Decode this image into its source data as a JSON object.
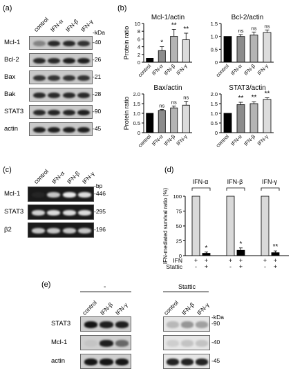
{
  "panel_labels": {
    "a": "(a)",
    "b": "(b)",
    "c": "(c)",
    "d": "(d)",
    "e": "(e)"
  },
  "panel_a": {
    "lanes": [
      "control",
      "IFN-α",
      "IFN-β",
      "IFN-γ"
    ],
    "kda_label": "-kDa",
    "rows": [
      {
        "name": "Mcl-1",
        "kda": "-40"
      },
      {
        "name": "Bcl-2",
        "kda": "-26"
      },
      {
        "name": "Bax",
        "kda": "-21"
      },
      {
        "name": "Bak",
        "kda": "-28"
      },
      {
        "name": "STAT3",
        "kda": "-90"
      },
      {
        "name": "actin",
        "kda": "-45"
      }
    ]
  },
  "panel_c": {
    "lanes": [
      "control",
      "IFN-α",
      "IFN-β",
      "IFN-γ"
    ],
    "bp_label": "-bp",
    "rows": [
      {
        "name": "Mcl-1",
        "bp": "-446"
      },
      {
        "name": "STAT3",
        "bp": "-295"
      },
      {
        "name": "β2",
        "bp": "-196"
      }
    ]
  },
  "panel_e": {
    "group_minus": "-",
    "group_stattic": "Stattic",
    "lanes": [
      "control",
      "IFN-β",
      "IFN-γ"
    ],
    "kda_label": "-kDa",
    "rows": [
      {
        "name": "STAT3",
        "kda": "-90"
      },
      {
        "name": "Mcl-1",
        "kda": "-40"
      },
      {
        "name": "actin",
        "kda": "-45"
      }
    ]
  },
  "chart_data": [
    {
      "type": "bar",
      "title": "Mcl-1/actin",
      "ylabel": "Protein ratio",
      "categories": [
        "control",
        "IFN-α",
        "IFN-β",
        "IFN-γ"
      ],
      "values": [
        1.0,
        3.0,
        6.7,
        5.8
      ],
      "errors": [
        0,
        1.0,
        1.8,
        1.7
      ],
      "significance": [
        "",
        "*",
        "**",
        "**"
      ],
      "ylim": [
        0,
        10
      ],
      "yticks": [
        "0",
        "2",
        "4",
        "6",
        "8",
        "10"
      ],
      "colors": [
        "#000000",
        "#8c8c8c",
        "#b4b4b4",
        "#dcdcdc"
      ]
    },
    {
      "type": "bar",
      "title": "Bcl-2/actin",
      "ylabel": "",
      "categories": [
        "control",
        "IFN-α",
        "IFN-β",
        "IFN-γ"
      ],
      "values": [
        1.0,
        1.0,
        1.05,
        1.15
      ],
      "errors": [
        0,
        0.07,
        0.12,
        0.1
      ],
      "significance": [
        "",
        "ns",
        "ns",
        "ns"
      ],
      "ylim": [
        0,
        1.5
      ],
      "yticks": [
        "0",
        "0.5",
        "1.0",
        "1.5"
      ],
      "colors": [
        "#000000",
        "#8c8c8c",
        "#b4b4b4",
        "#dcdcdc"
      ]
    },
    {
      "type": "bar",
      "title": "Bax/actin",
      "ylabel": "Protein ratio",
      "categories": [
        "control",
        "IFN-α",
        "IFN-β",
        "IFN-γ"
      ],
      "values": [
        1.0,
        1.15,
        1.28,
        1.42
      ],
      "errors": [
        0,
        0.05,
        0.1,
        0.2
      ],
      "significance": [
        "",
        "ns",
        "ns",
        "ns"
      ],
      "ylim": [
        0,
        2.0
      ],
      "yticks": [
        "0",
        "0.5",
        "1.0",
        "1.5",
        "2.0"
      ],
      "colors": [
        "#000000",
        "#8c8c8c",
        "#b4b4b4",
        "#dcdcdc"
      ]
    },
    {
      "type": "bar",
      "title": "STAT3/actin",
      "ylabel": "",
      "categories": [
        "control",
        "IFN-α",
        "IFN-β",
        "IFN-γ"
      ],
      "values": [
        1.0,
        1.45,
        1.5,
        1.72
      ],
      "errors": [
        0,
        0.12,
        0.1,
        0.08
      ],
      "significance": [
        "",
        "**",
        "**",
        "**"
      ],
      "ylim": [
        0,
        2.0
      ],
      "yticks": [
        "0",
        "0.5",
        "1.0",
        "1.5",
        "2.0"
      ],
      "colors": [
        "#000000",
        "#8c8c8c",
        "#b4b4b4",
        "#dcdcdc"
      ]
    },
    {
      "type": "bar",
      "ylabel": "IFN-mediated survival ratio (%)",
      "groups": [
        "IFN-α",
        "IFN-β",
        "IFN-γ"
      ],
      "ifn_row_label": "IFN",
      "stattic_row_label": "Stattic",
      "ifn_signs": [
        "+",
        "+"
      ],
      "stattic_signs": [
        "-",
        "+"
      ],
      "values": [
        [
          100,
          4
        ],
        [
          100,
          9
        ],
        [
          100,
          5
        ]
      ],
      "errors": [
        [
          0,
          2
        ],
        [
          0,
          4
        ],
        [
          0,
          3
        ]
      ],
      "significance": [
        "*",
        "*",
        "**"
      ],
      "ylim": [
        0,
        100
      ],
      "yticks": [
        "0",
        "25",
        "50",
        "75",
        "100"
      ],
      "colors": [
        "#d9d9d9",
        "#000000"
      ]
    }
  ]
}
